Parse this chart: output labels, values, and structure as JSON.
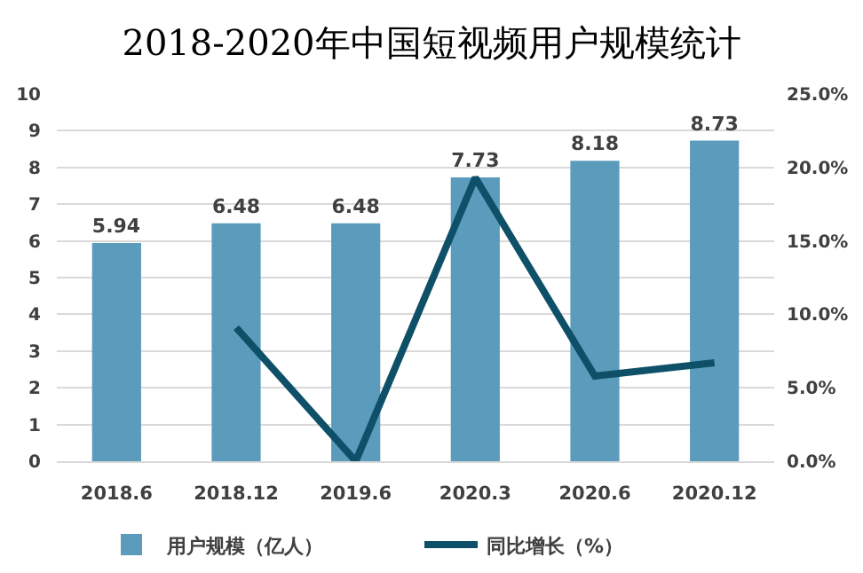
{
  "chart_data": {
    "type": "bar",
    "title": "2018-2020年中国短视频用户规模统计",
    "categories": [
      "2018.6",
      "2018.12",
      "2019.6",
      "2020.3",
      "2020.6",
      "2020.12"
    ],
    "series": [
      {
        "name": "用户规模（亿人）",
        "color": "#5b9cbc",
        "values": [
          5.94,
          6.48,
          6.48,
          7.73,
          8.18,
          8.73
        ],
        "value_labels": [
          "5.94",
          "6.48",
          "6.48",
          "7.73",
          "8.18",
          "8.73"
        ]
      },
      {
        "name": "同比增长（%）",
        "type": "line",
        "axis": "y2",
        "color": "#0e5068",
        "values": [
          null,
          9.1,
          0,
          19.3,
          5.8,
          6.7
        ]
      }
    ],
    "ylim": [
      0,
      10
    ],
    "yticks": [
      0,
      1,
      2,
      3,
      4,
      5,
      6,
      7,
      8,
      9,
      10
    ],
    "y2lim": [
      0,
      25
    ],
    "y2ticks": [
      {
        "value": 0,
        "label": "0.0%"
      },
      {
        "value": 5,
        "label": "5.0%"
      },
      {
        "value": 10,
        "label": "10.0%"
      },
      {
        "value": 15,
        "label": "15.0%"
      },
      {
        "value": 20,
        "label": "20.0%"
      },
      {
        "value": 25,
        "label": "25.0%"
      }
    ],
    "grid": "y",
    "legend": "bottom"
  }
}
